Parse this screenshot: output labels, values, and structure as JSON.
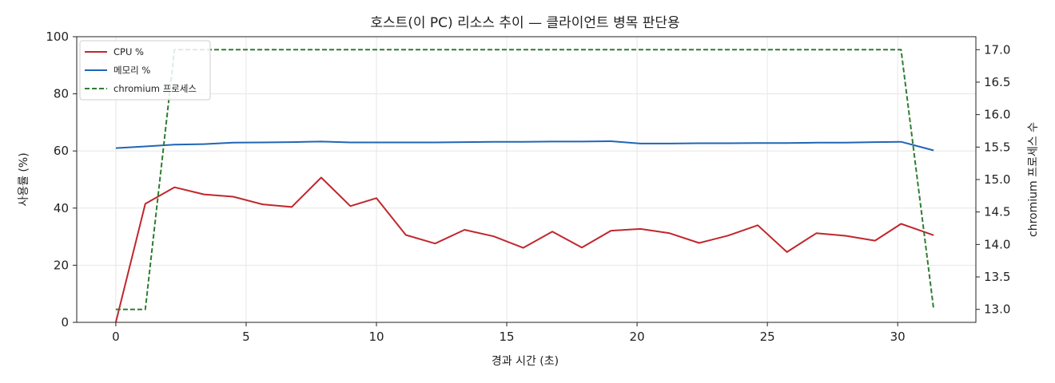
{
  "chart_data": {
    "type": "line",
    "title": "호스트(이 PC) 리소스 추이 — 클라이언트 병목 판단용",
    "xlabel": "경과 시간 (초)",
    "ylabel": "사용률 (%)",
    "y2label": "chromium 프로세스 수",
    "xlim": [
      -1.5,
      33.0
    ],
    "ylim": [
      0,
      100
    ],
    "y2lim": [
      12.8,
      17.2
    ],
    "xticks": [
      0,
      5,
      10,
      15,
      20,
      25,
      30
    ],
    "yticks": [
      0,
      20,
      40,
      60,
      80,
      100
    ],
    "y2ticks": [
      13.0,
      13.5,
      14.0,
      14.5,
      15.0,
      15.5,
      16.0,
      16.5,
      17.0
    ],
    "y2tick_labels": [
      "13.0",
      "13.5",
      "14.0",
      "14.5",
      "15.0",
      "15.5",
      "16.0",
      "16.5",
      "17.0"
    ],
    "grid": true,
    "legend_position": "top-left",
    "x": [
      0,
      1.13,
      2.25,
      3.38,
      4.5,
      5.63,
      6.75,
      7.88,
      9.0,
      10.0,
      11.13,
      12.25,
      13.38,
      14.5,
      15.63,
      16.75,
      17.88,
      19.0,
      20.13,
      21.25,
      22.38,
      23.5,
      24.63,
      25.75,
      26.88,
      28.0,
      29.13,
      30.13,
      31.38
    ],
    "series": [
      {
        "name": "CPU %",
        "axis": "left",
        "color": "#c0272d",
        "style": "solid",
        "values": [
          0,
          41.5,
          47.3,
          44.8,
          44.0,
          41.3,
          40.4,
          50.7,
          40.7,
          43.5,
          30.6,
          27.6,
          32.4,
          30.1,
          26.1,
          31.8,
          26.2,
          32.1,
          32.7,
          31.2,
          27.8,
          30.4,
          34.0,
          24.6,
          31.2,
          30.3,
          28.6,
          34.5,
          30.5
        ]
      },
      {
        "name": "메모리 %",
        "axis": "left",
        "color": "#1f66b5",
        "style": "solid",
        "values": [
          61.0,
          61.6,
          62.2,
          62.4,
          62.9,
          63.0,
          63.1,
          63.3,
          63.0,
          63.0,
          63.0,
          63.0,
          63.1,
          63.2,
          63.2,
          63.3,
          63.3,
          63.4,
          62.6,
          62.6,
          62.7,
          62.7,
          62.8,
          62.8,
          62.9,
          62.9,
          63.1,
          63.2,
          60.2
        ]
      },
      {
        "name": "chromium 프로세스",
        "axis": "right",
        "color": "#2e7d32",
        "style": "dashed",
        "values": [
          13,
          13,
          17,
          17,
          17,
          17,
          17,
          17,
          17,
          17,
          17,
          17,
          17,
          17,
          17,
          17,
          17,
          17,
          17,
          17,
          17,
          17,
          17,
          17,
          17,
          17,
          17,
          17,
          13
        ]
      }
    ]
  }
}
